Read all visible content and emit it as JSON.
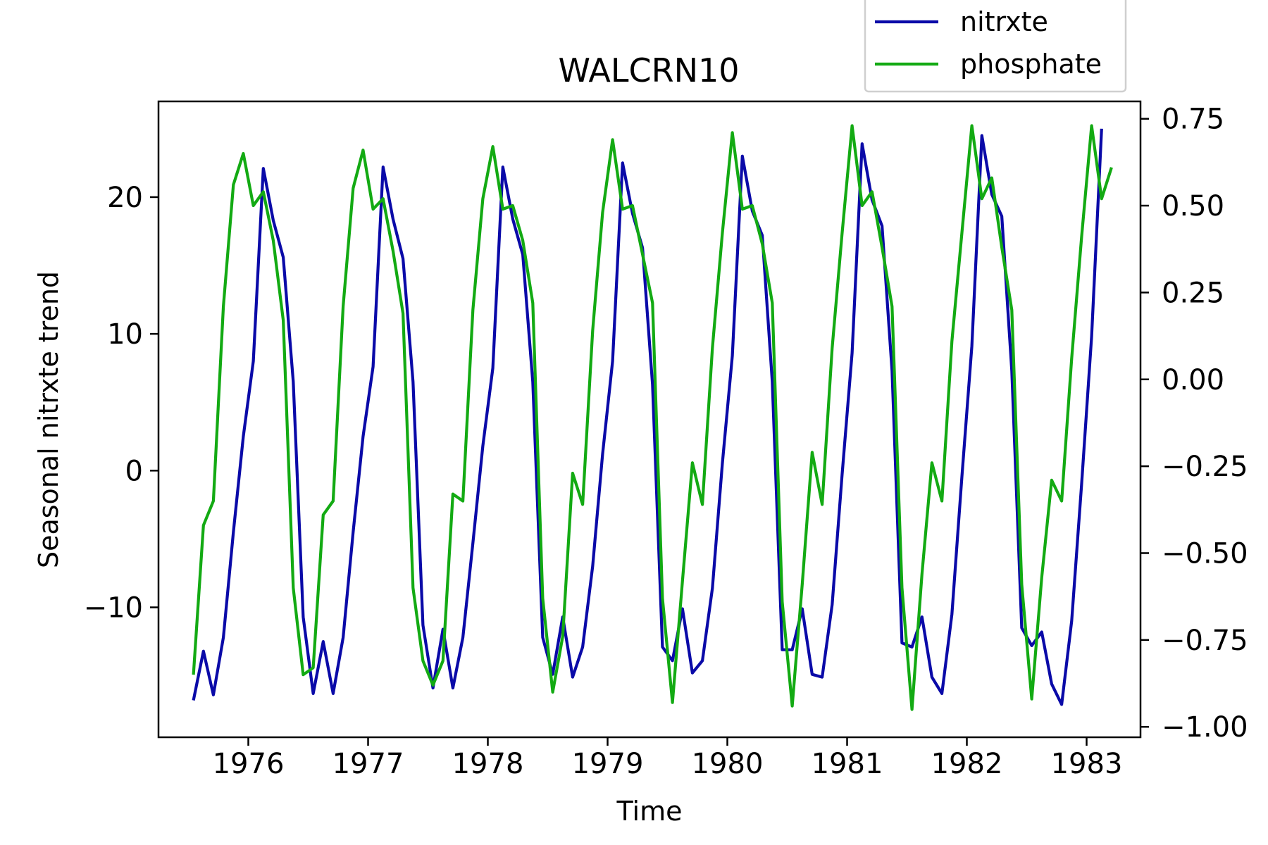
{
  "chart_data": {
    "type": "line",
    "title": "WALCRN10",
    "xlabel": "Time",
    "ylabel": "Seasonal nitrxte trend",
    "y2label": "",
    "xlim": [
      1975.25,
      1983.45
    ],
    "ylim": [
      -19.5,
      27.0
    ],
    "y2lim": [
      -1.03,
      0.8
    ],
    "x_ticks": [
      1976,
      1977,
      1978,
      1979,
      1980,
      1981,
      1982,
      1983
    ],
    "y_ticks": [
      -10,
      0,
      10,
      20
    ],
    "y2_ticks": [
      -1.0,
      -0.75,
      -0.5,
      -0.25,
      0.0,
      0.25,
      0.5,
      0.75
    ],
    "y2_tick_labels": [
      "−1.00",
      "−0.75",
      "−0.50",
      "−0.25",
      "0.00",
      "0.25",
      "0.50",
      "0.75"
    ],
    "y_tick_labels": [
      "−10",
      "0",
      "10",
      "20"
    ],
    "legend": {
      "placement": "top-right, above plot area"
    },
    "x_start": 1975.5417,
    "x_step": 0.083333,
    "series": [
      {
        "name": "nitrxte",
        "axis": "left",
        "color": "#0a0aa8",
        "values": [
          -16.8,
          -13.2,
          -16.4,
          -12.2,
          -4.5,
          2.5,
          8.0,
          22.1,
          18.3,
          15.6,
          6.5,
          -10.7,
          -16.3,
          -12.5,
          -16.3,
          -12.2,
          -4.5,
          2.5,
          7.6,
          22.2,
          18.4,
          15.5,
          6.5,
          -11.3,
          -15.9,
          -11.6,
          -15.9,
          -12.2,
          -5.3,
          1.8,
          7.5,
          22.2,
          18.4,
          15.8,
          6.5,
          -12.2,
          -14.9,
          -10.7,
          -15.1,
          -12.9,
          -7.0,
          1.2,
          8.0,
          22.5,
          18.8,
          16.3,
          6.3,
          -12.9,
          -13.9,
          -10.1,
          -14.8,
          -13.9,
          -8.6,
          0.5,
          8.4,
          23.0,
          19.0,
          17.2,
          6.5,
          -13.1,
          -13.1,
          -10.1,
          -14.9,
          -15.1,
          -9.8,
          -0.3,
          8.6,
          23.9,
          19.8,
          17.9,
          7.3,
          -12.6,
          -12.9,
          -10.7,
          -15.1,
          -16.3,
          -10.5,
          -0.5,
          9.1,
          24.5,
          20.2,
          18.6,
          7.3,
          -11.5,
          -12.8,
          -11.8,
          -15.6,
          -17.1,
          -11.0,
          -1.0,
          9.8,
          25.0
        ]
      },
      {
        "name": "phosphate",
        "axis": "right",
        "color": "#13aa13",
        "values": [
          -0.85,
          -0.42,
          -0.35,
          0.21,
          0.56,
          0.65,
          0.5,
          0.54,
          0.4,
          0.17,
          -0.6,
          -0.85,
          -0.83,
          -0.39,
          -0.35,
          0.21,
          0.55,
          0.66,
          0.49,
          0.52,
          0.37,
          0.19,
          -0.6,
          -0.81,
          -0.88,
          -0.81,
          -0.33,
          -0.35,
          0.2,
          0.52,
          0.67,
          0.49,
          0.5,
          0.4,
          0.22,
          -0.63,
          -0.9,
          -0.74,
          -0.27,
          -0.36,
          0.14,
          0.48,
          0.69,
          0.49,
          0.5,
          0.36,
          0.22,
          -0.63,
          -0.93,
          -0.58,
          -0.24,
          -0.36,
          0.09,
          0.42,
          0.71,
          0.49,
          0.5,
          0.39,
          0.22,
          -0.64,
          -0.94,
          -0.59,
          -0.21,
          -0.36,
          0.09,
          0.42,
          0.73,
          0.5,
          0.54,
          0.38,
          0.21,
          -0.6,
          -0.95,
          -0.56,
          -0.24,
          -0.35,
          0.11,
          0.42,
          0.73,
          0.52,
          0.58,
          0.38,
          0.2,
          -0.59,
          -0.92,
          -0.57,
          -0.29,
          -0.35,
          0.06,
          0.41,
          0.73,
          0.52,
          0.61
        ]
      }
    ]
  }
}
